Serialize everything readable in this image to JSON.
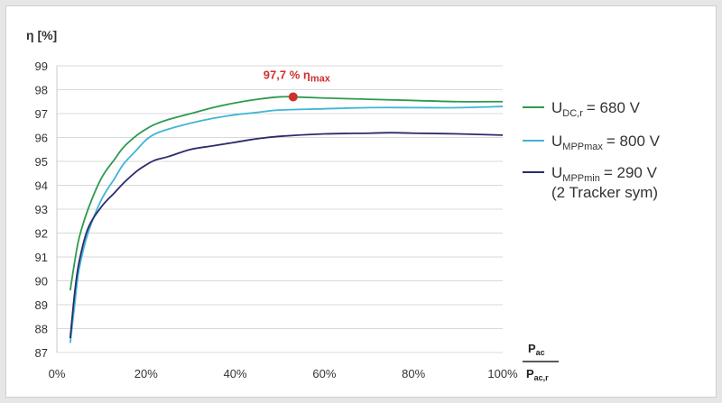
{
  "chart_data": {
    "type": "line",
    "ylabel": "η [%]",
    "xlabel_fraction": {
      "numerator": "P",
      "numerator_sub": "ac",
      "denominator": "P",
      "denominator_sub": "ac,r"
    },
    "xlim": [
      0,
      100
    ],
    "ylim": [
      87,
      99
    ],
    "x_ticks": [
      "0%",
      "20%",
      "40%",
      "60%",
      "80%",
      "100%"
    ],
    "x_tick_values": [
      0,
      20,
      40,
      60,
      80,
      100
    ],
    "y_ticks": [
      "87",
      "88",
      "89",
      "90",
      "91",
      "92",
      "93",
      "94",
      "95",
      "96",
      "97",
      "98",
      "99"
    ],
    "y_tick_values": [
      87,
      88,
      89,
      90,
      91,
      92,
      93,
      94,
      95,
      96,
      97,
      98,
      99
    ],
    "grid": true,
    "legend_position": "right",
    "series": [
      {
        "legend_main": "U",
        "legend_sub": "DC,r",
        "legend_value": "= 680 V",
        "color": "#2e9a4f",
        "x": [
          3,
          4,
          5,
          7,
          10,
          13,
          15,
          18,
          20,
          22,
          25,
          30,
          35,
          40,
          45,
          50,
          53,
          60,
          70,
          80,
          90,
          100
        ],
        "y": [
          89.6,
          90.8,
          91.8,
          93.0,
          94.3,
          95.1,
          95.6,
          96.1,
          96.35,
          96.55,
          96.75,
          97.0,
          97.25,
          97.45,
          97.6,
          97.7,
          97.7,
          97.65,
          97.6,
          97.55,
          97.5,
          97.5
        ]
      },
      {
        "legend_main": "U",
        "legend_sub": "MPPmax",
        "legend_value": "= 800 V",
        "color": "#3fb5d6",
        "x": [
          3,
          4,
          5,
          7,
          10,
          13,
          15,
          18,
          20,
          22,
          25,
          30,
          35,
          40,
          45,
          50,
          60,
          70,
          80,
          90,
          100
        ],
        "y": [
          87.4,
          89.0,
          90.5,
          92.0,
          93.4,
          94.3,
          94.9,
          95.5,
          95.9,
          96.15,
          96.35,
          96.6,
          96.8,
          96.95,
          97.05,
          97.15,
          97.2,
          97.25,
          97.25,
          97.25,
          97.3
        ]
      },
      {
        "legend_main": "U",
        "legend_sub": "MPPmin",
        "legend_value": "= 290 V",
        "legend_extra": "(2 Tracker sym)",
        "color": "#2b2b6b",
        "x": [
          3,
          4,
          5,
          7,
          10,
          13,
          15,
          18,
          20,
          22,
          25,
          30,
          35,
          40,
          45,
          50,
          60,
          70,
          75,
          80,
          90,
          100
        ],
        "y": [
          87.6,
          89.5,
          90.8,
          92.2,
          93.1,
          93.7,
          94.1,
          94.6,
          94.85,
          95.05,
          95.2,
          95.5,
          95.65,
          95.8,
          95.95,
          96.05,
          96.15,
          96.18,
          96.2,
          96.18,
          96.15,
          96.1
        ]
      }
    ],
    "annotation": {
      "label": "97,7 % η",
      "label_sub": "max",
      "x": 53,
      "y": 97.7,
      "color": "#d0312d"
    }
  }
}
